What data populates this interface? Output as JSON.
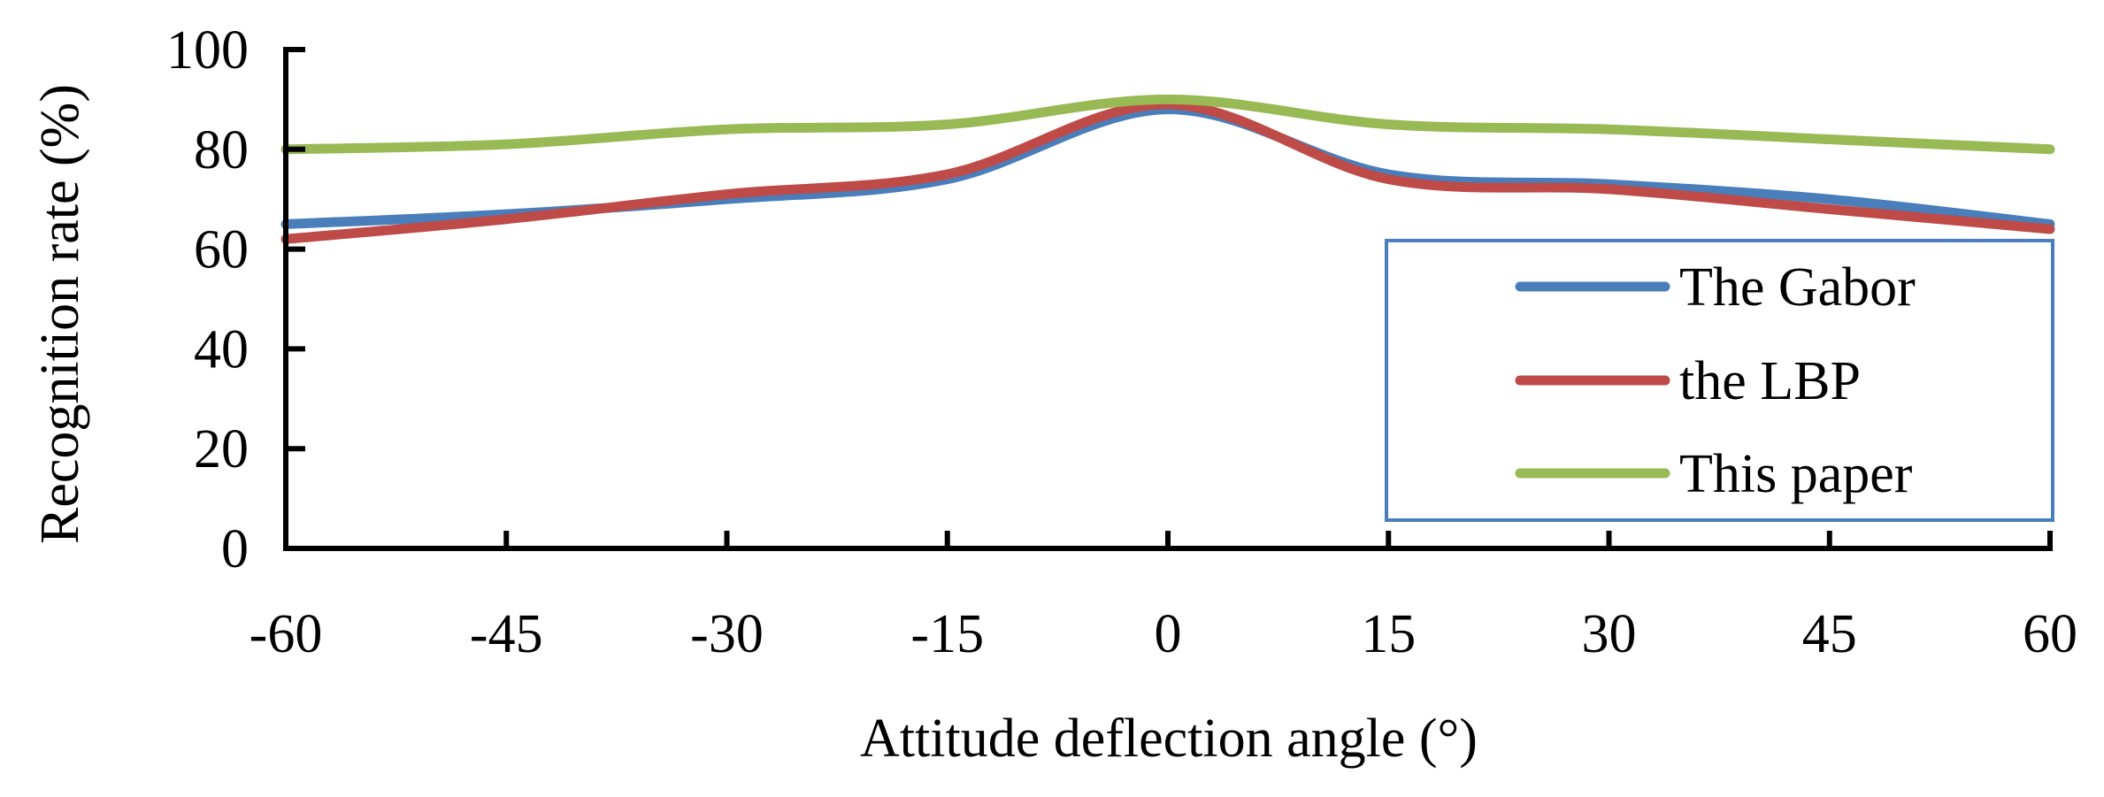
{
  "chart_data": {
    "type": "line",
    "title": "",
    "xlabel": "Attitude deflection angle (°)",
    "ylabel": "Recognition rate (%)",
    "x": [
      -60,
      -45,
      -30,
      -15,
      0,
      15,
      30,
      45,
      60
    ],
    "xlim": [
      -60,
      60
    ],
    "ylim": [
      0,
      100
    ],
    "xticks": [
      "-60",
      "-45",
      "-30",
      "-15",
      "0",
      "15",
      "30",
      "45",
      "60"
    ],
    "yticks": [
      "0",
      "20",
      "40",
      "60",
      "80",
      "100"
    ],
    "grid": false,
    "legend_position": "right",
    "series": [
      {
        "name": "The Gabor",
        "color": "#4a7ebb",
        "values": [
          65,
          67,
          70,
          74,
          88,
          75,
          73,
          70,
          65
        ]
      },
      {
        "name": "the LBP",
        "color": "#be4b48",
        "values": [
          62,
          66,
          71,
          75,
          89,
          74,
          72,
          68,
          64
        ]
      },
      {
        "name": "This paper",
        "color": "#98b954",
        "values": [
          80,
          81,
          84,
          85,
          90,
          85,
          84,
          82,
          80
        ]
      }
    ]
  }
}
